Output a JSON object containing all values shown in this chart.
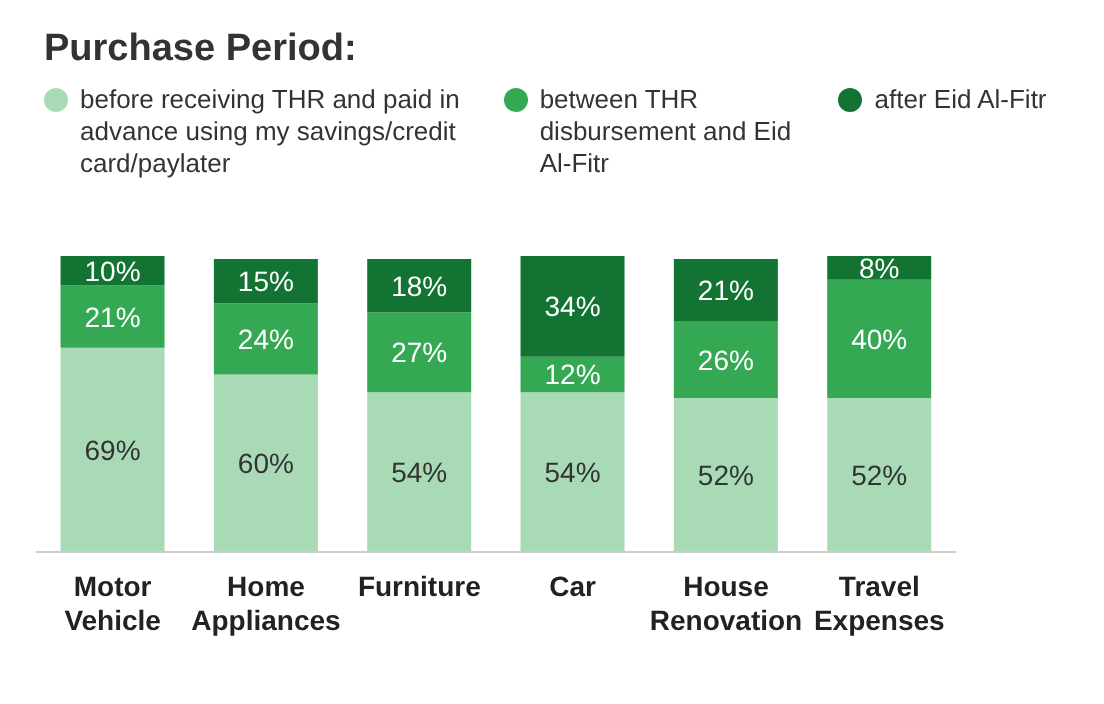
{
  "chart_data": {
    "type": "bar",
    "title": "Purchase Period:",
    "categories": [
      "Motor Vehicle",
      "Home Appliances",
      "Furniture",
      "Car",
      "House Renovation",
      "Travel Expenses"
    ],
    "stacked": true,
    "legend": "top",
    "series": [
      {
        "name": "before receiving THR and paid in advance using my savings/credit card/paylater",
        "color": "#a8dab5",
        "values": [
          69,
          60,
          54,
          54,
          52,
          52
        ],
        "value_labels": [
          "69%",
          "60%",
          "54%",
          "54%",
          "52%",
          "52%"
        ]
      },
      {
        "name": "between THR disbursement and Eid Al-Fitr",
        "color": "#34a853",
        "values": [
          21,
          24,
          27,
          12,
          26,
          40
        ],
        "value_labels": [
          "21%",
          "24%",
          "27%",
          "12%",
          "26%",
          "40%"
        ]
      },
      {
        "name": "after Eid Al-Fitr",
        "color": "#137333",
        "values": [
          10,
          15,
          18,
          34,
          21,
          8
        ],
        "value_labels": [
          "10%",
          "15%",
          "18%",
          "34%",
          "21%",
          "8%"
        ]
      }
    ]
  }
}
